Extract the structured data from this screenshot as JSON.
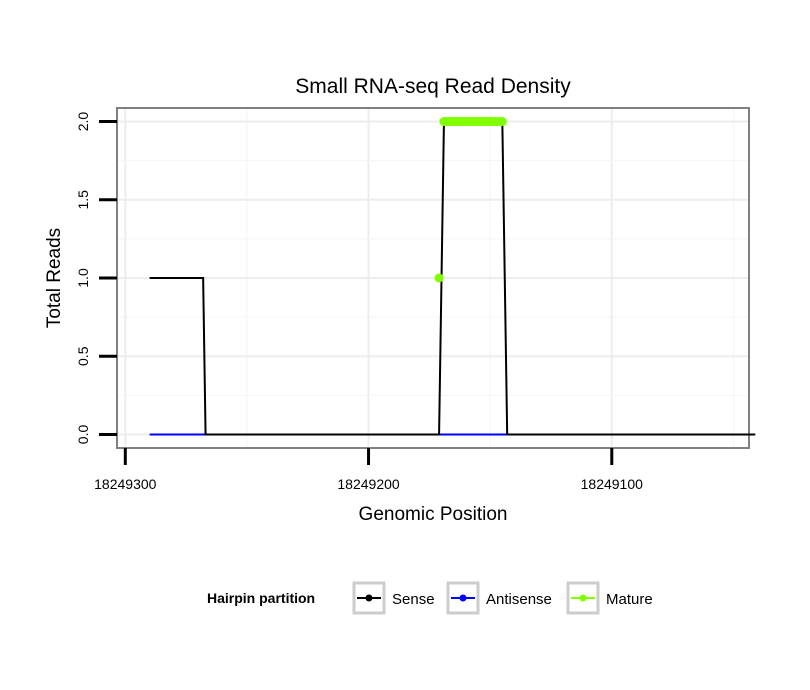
{
  "chart_data": {
    "type": "line",
    "title": "Small RNA-seq Read Density",
    "xlabel": "Genomic Position",
    "ylabel": "Total Reads",
    "x_reversed": true,
    "xlim": [
      18249303,
      18249044
    ],
    "ylim": [
      -0.08,
      2.08
    ],
    "x_ticks": [
      18249300,
      18249200,
      18249100
    ],
    "x_tick_labels": [
      "18249300",
      "18249200",
      "18249100"
    ],
    "y_ticks": [
      0.0,
      0.5,
      1.0,
      1.5,
      2.0
    ],
    "y_tick_labels": [
      "0.0",
      "0.5",
      "1.0",
      "1.5",
      "2.0"
    ],
    "grid": true,
    "legend_title": "Hairpin partition",
    "legend_position": "bottom",
    "series": [
      {
        "name": "Sense",
        "color": "#000000",
        "marker": false,
        "x": [
          18249290,
          18249268,
          18249267,
          18249171,
          18249169,
          18249145,
          18249143,
          18249041
        ],
        "y": [
          1,
          1,
          0,
          0,
          2,
          2,
          0,
          0
        ]
      },
      {
        "name": "Antisense",
        "color": "#0000ff",
        "marker": false,
        "x": [
          18249290,
          18249143
        ],
        "y": [
          0,
          0
        ]
      },
      {
        "name": "Mature",
        "color": "#7fff00",
        "marker": true,
        "x": [
          18249171,
          18249169,
          18249168,
          18249167,
          18249166,
          18249165,
          18249164,
          18249163,
          18249162,
          18249161,
          18249160,
          18249159,
          18249158,
          18249157,
          18249156,
          18249155,
          18249154,
          18249153,
          18249152,
          18249151,
          18249150,
          18249149,
          18249148,
          18249147,
          18249146,
          18249145
        ],
        "y": [
          1,
          2,
          2,
          2,
          2,
          2,
          2,
          2,
          2,
          2,
          2,
          2,
          2,
          2,
          2,
          2,
          2,
          2,
          2,
          2,
          2,
          2,
          2,
          2,
          2,
          2
        ]
      }
    ]
  }
}
